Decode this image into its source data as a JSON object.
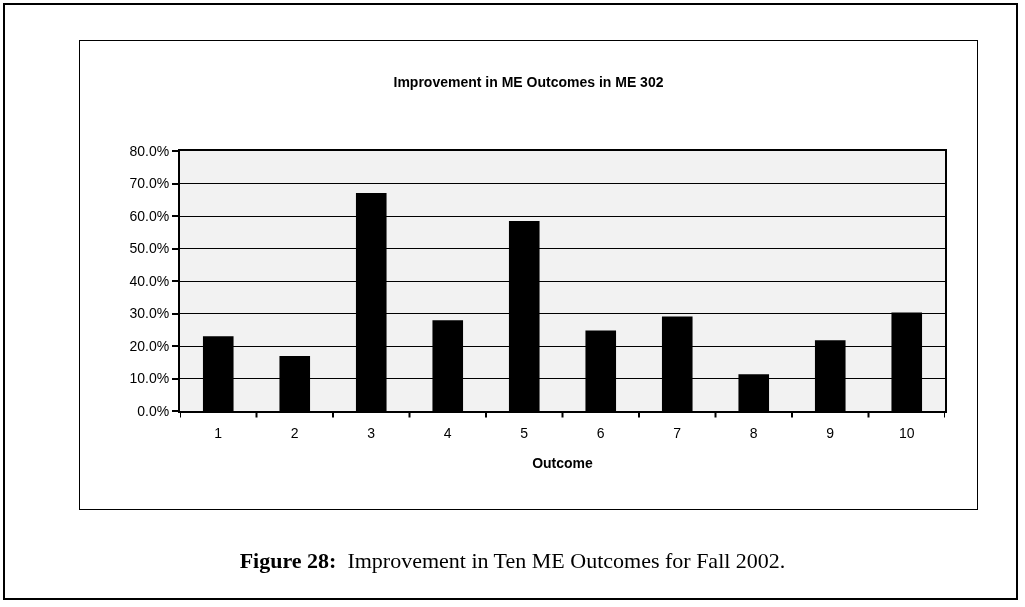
{
  "chart_data": {
    "type": "bar",
    "title": "Improvement in ME Outcomes in ME 302",
    "xlabel": "Outcome",
    "categories": [
      "1",
      "2",
      "3",
      "4",
      "5",
      "6",
      "7",
      "8",
      "9",
      "10"
    ],
    "values": [
      23.0,
      16.9,
      67.1,
      27.9,
      58.5,
      24.8,
      29.1,
      11.3,
      21.8,
      30.3
    ],
    "color": "#000000",
    "ylim": [
      0,
      80
    ],
    "yticks": [
      {
        "value": 0,
        "label": "0.0%"
      },
      {
        "value": 10,
        "label": "10.0%"
      },
      {
        "value": 20,
        "label": "20.0%"
      },
      {
        "value": 30,
        "label": "30.0%"
      },
      {
        "value": 40,
        "label": "40.0%"
      },
      {
        "value": 50,
        "label": "50.0%"
      },
      {
        "value": 60,
        "label": "60.0%"
      },
      {
        "value": 70,
        "label": "70.0%"
      },
      {
        "value": 80,
        "label": "80.0%"
      }
    ],
    "grid": "y",
    "annotations": [
      "Figure 28:  Improvement in Ten ME Outcomes for Fall 2002."
    ]
  }
}
